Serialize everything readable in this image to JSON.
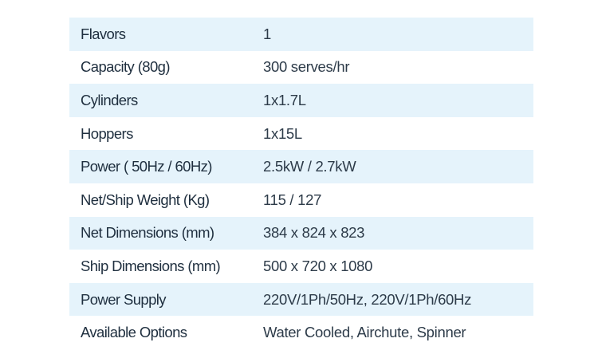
{
  "colors": {
    "row_shade": "#e5f3fb",
    "text": "#1f2f3f"
  },
  "specs": [
    {
      "label": "Flavors",
      "value": "1"
    },
    {
      "label": "Capacity (80g)",
      "value": "300 serves/hr"
    },
    {
      "label": "Cylinders",
      "value": "1x1.7L"
    },
    {
      "label": "Hoppers",
      "value": "1x15L"
    },
    {
      "label": "Power ( 50Hz / 60Hz)",
      "value": "2.5kW / 2.7kW"
    },
    {
      "label": "Net/Ship Weight (Kg)",
      "value": "115 / 127"
    },
    {
      "label": "Net Dimensions (mm)",
      "value": "384 x 824 x 823"
    },
    {
      "label": "Ship Dimensions (mm)",
      "value": "500 x 720 x 1080"
    },
    {
      "label": "Power Supply",
      "value": "220V/1Ph/50Hz, 220V/1Ph/60Hz"
    },
    {
      "label": "Available Options",
      "value": "Water Cooled, Airchute, Spinner"
    }
  ]
}
